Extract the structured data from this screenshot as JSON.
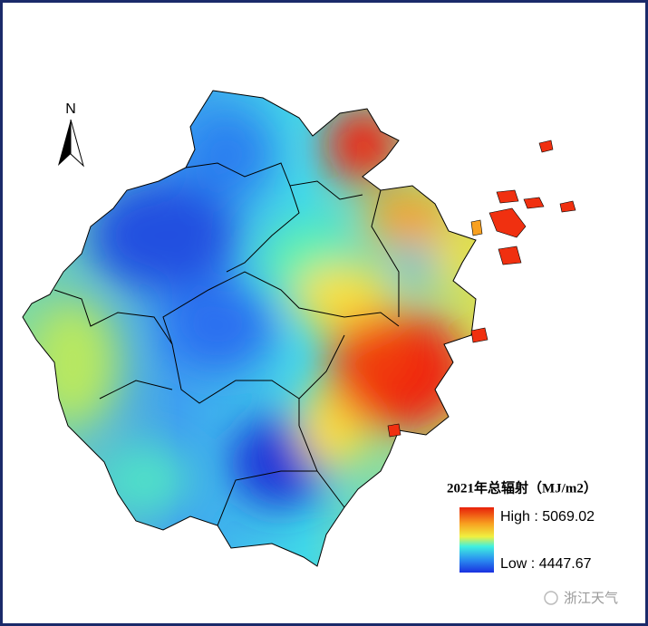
{
  "north_label": "N",
  "legend": {
    "title": "2021年总辐射（MJ/m2）",
    "high_label": "High : 5069.02",
    "low_label": "Low : 4447.67"
  },
  "watermark": "浙江天气"
}
